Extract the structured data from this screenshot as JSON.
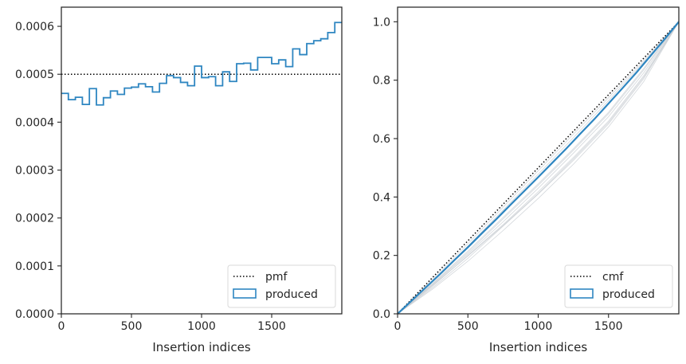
{
  "chart_data": [
    {
      "type": "step",
      "xlabel": "Insertion indices",
      "ylabel": "",
      "xlim": [
        0,
        2000
      ],
      "ylim": [
        0,
        0.00064
      ],
      "xticks": [
        0,
        500,
        1000,
        1500
      ],
      "xtick_labels": [
        "0",
        "500",
        "1000",
        "1500"
      ],
      "yticks": [
        0,
        0.0001,
        0.0002,
        0.0003,
        0.0004,
        0.0005,
        0.0006
      ],
      "ytick_labels": [
        "0.0000",
        "0.0001",
        "0.0002",
        "0.0003",
        "0.0004",
        "0.0005",
        "0.0006"
      ],
      "legend_position": "lower-right",
      "reference": {
        "name": "pmf",
        "y": 0.0005,
        "style": "dotted",
        "color": "#000000"
      },
      "series": [
        {
          "name": "produced",
          "color": "#2e86c1",
          "bin_width": 50,
          "values": [
            0.00046,
            0.000447,
            0.000452,
            0.000437,
            0.00047,
            0.000436,
            0.000451,
            0.000465,
            0.000458,
            0.000471,
            0.000473,
            0.00048,
            0.000474,
            0.000463,
            0.000481,
            0.000497,
            0.000493,
            0.000483,
            0.000476,
            0.000517,
            0.000493,
            0.000495,
            0.000476,
            0.000505,
            0.000485,
            0.000522,
            0.000523,
            0.000509,
            0.000535,
            0.000535,
            0.000522,
            0.00053,
            0.000516,
            0.000553,
            0.000541,
            0.000564,
            0.00057,
            0.000574,
            0.000587,
            0.000608
          ]
        }
      ]
    },
    {
      "type": "line",
      "xlabel": "Insertion indices",
      "ylabel": "",
      "xlim": [
        0,
        2000
      ],
      "ylim": [
        0,
        1.05
      ],
      "xticks": [
        0,
        500,
        1000,
        1500
      ],
      "xtick_labels": [
        "0",
        "500",
        "1000",
        "1500"
      ],
      "yticks": [
        0,
        0.2,
        0.4,
        0.6,
        0.8,
        1.0
      ],
      "ytick_labels": [
        "0.0",
        "0.2",
        "0.4",
        "0.6",
        "0.8",
        "1.0"
      ],
      "legend_position": "lower-right",
      "reference": {
        "name": "cmf",
        "style": "dotted",
        "color": "#000000",
        "x": [
          0,
          2000
        ],
        "y": [
          0,
          1
        ]
      },
      "series": [
        {
          "name": "produced",
          "color": "#2e86c1",
          "x": [
            0,
            100,
            200,
            300,
            400,
            500,
            600,
            700,
            800,
            900,
            1000,
            1100,
            1200,
            1300,
            1400,
            1500,
            1600,
            1700,
            1800,
            1900,
            2000
          ],
          "y": [
            0,
            0.045,
            0.09,
            0.135,
            0.182,
            0.228,
            0.276,
            0.323,
            0.372,
            0.42,
            0.468,
            0.517,
            0.566,
            0.617,
            0.667,
            0.72,
            0.773,
            0.827,
            0.884,
            0.941,
            1.0
          ]
        }
      ],
      "background_runs": {
        "color": "#c8cdd2",
        "x": [
          0,
          250,
          500,
          750,
          1000,
          1250,
          1500,
          1750,
          2000
        ],
        "runs": [
          [
            0,
            0.12,
            0.24,
            0.365,
            0.49,
            0.615,
            0.74,
            0.868,
            1.0
          ],
          [
            0,
            0.105,
            0.215,
            0.33,
            0.445,
            0.565,
            0.69,
            0.84,
            1.0
          ],
          [
            0,
            0.1,
            0.205,
            0.315,
            0.43,
            0.55,
            0.675,
            0.825,
            1.0
          ],
          [
            0,
            0.095,
            0.2,
            0.305,
            0.418,
            0.535,
            0.66,
            0.815,
            1.0
          ],
          [
            0,
            0.11,
            0.225,
            0.345,
            0.465,
            0.59,
            0.718,
            0.855,
            1.0
          ],
          [
            0,
            0.09,
            0.19,
            0.3,
            0.41,
            0.525,
            0.65,
            0.805,
            1.0
          ],
          [
            0,
            0.115,
            0.232,
            0.355,
            0.478,
            0.603,
            0.73,
            0.862,
            1.0
          ],
          [
            0,
            0.085,
            0.18,
            0.285,
            0.395,
            0.512,
            0.64,
            0.795,
            1.0
          ],
          [
            0,
            0.102,
            0.21,
            0.325,
            0.44,
            0.56,
            0.685,
            0.835,
            1.0
          ],
          [
            0,
            0.098,
            0.198,
            0.302,
            0.412,
            0.53,
            0.655,
            0.81,
            1.0
          ]
        ]
      }
    }
  ]
}
